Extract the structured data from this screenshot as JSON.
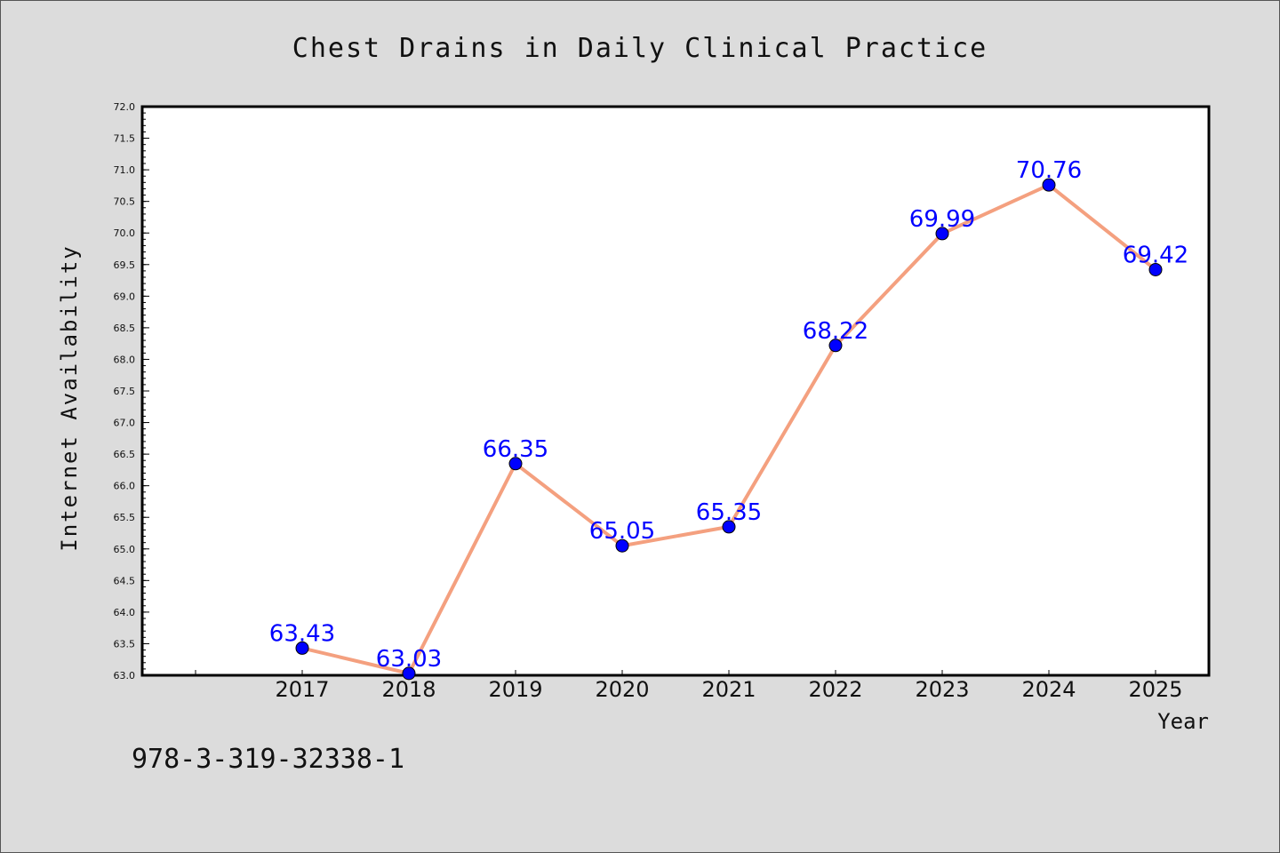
{
  "chart_data": {
    "type": "line",
    "title": "Chest Drains in Daily Clinical Practice",
    "xlabel": "Year",
    "ylabel": "Internet Availability",
    "categories": [
      "2017",
      "2018",
      "2019",
      "2020",
      "2021",
      "2022",
      "2023",
      "2024",
      "2025"
    ],
    "values": [
      63.43,
      63.03,
      66.35,
      65.05,
      65.35,
      68.22,
      69.99,
      70.76,
      69.42
    ],
    "data_labels": [
      "63.43",
      "63.03",
      "66.35",
      "65.05",
      "65.35",
      "68.22",
      "69.99",
      "70.76",
      "69.42"
    ],
    "ylim": [
      63.0,
      72.0
    ],
    "yticks": [
      "63.0",
      "63.5",
      "64.0",
      "64.5",
      "65.0",
      "65.5",
      "66.0",
      "66.5",
      "67.0",
      "67.5",
      "68.0",
      "68.5",
      "69.0",
      "69.5",
      "70.0",
      "70.5",
      "71.0",
      "71.5",
      "72.0"
    ],
    "grid": false,
    "legend": "none",
    "colors": {
      "line": "#f4a07f",
      "marker": "#0000ff",
      "label": "#0000ff",
      "background": "#dcdcdc",
      "plot_area": "#ffffff"
    }
  },
  "footer_text": "978-3-319-32338-1"
}
